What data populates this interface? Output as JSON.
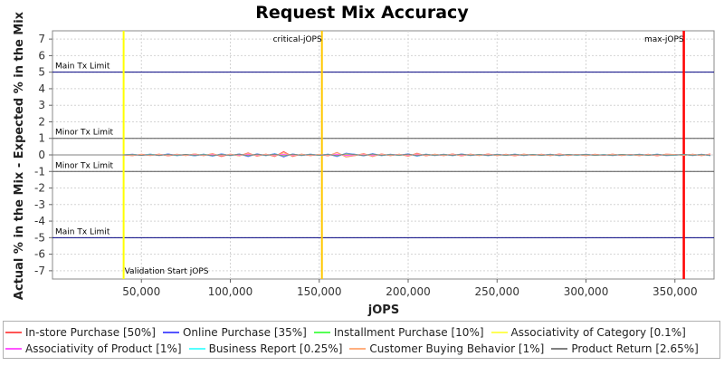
{
  "chart_data": {
    "type": "line",
    "title": "Request Mix Accuracy",
    "xlabel": "jOPS",
    "ylabel": "Actual % in the Mix - Expected % in the Mix",
    "xlim": [
      0,
      372000
    ],
    "ylim": [
      -7.5,
      7.5
    ],
    "x_ticks": [
      50000,
      100000,
      150000,
      200000,
      250000,
      300000,
      350000
    ],
    "x_tick_labels": [
      "50,000",
      "100,000",
      "150,000",
      "200,000",
      "250,000",
      "300,000",
      "350,000"
    ],
    "y_ticks": [
      7,
      6,
      5,
      4,
      3,
      2,
      1,
      0,
      -1,
      -2,
      -3,
      -4,
      -5,
      -6,
      -7
    ],
    "y_tick_labels": [
      "7",
      "6",
      "5",
      "4",
      "3",
      "2",
      "1",
      "0",
      "-1",
      "-2",
      "-3",
      "-4",
      "-5",
      "-6",
      "-7"
    ],
    "grid": true,
    "legend_position": "bottom",
    "reference_lines": [
      {
        "orientation": "horizontal",
        "value": 5,
        "label": "Main Tx Limit",
        "color": "#000080"
      },
      {
        "orientation": "horizontal",
        "value": 1,
        "label": "Minor Tx Limit",
        "color": "#555555"
      },
      {
        "orientation": "horizontal",
        "value": -1,
        "label": "Minor Tx Limit",
        "color": "#555555"
      },
      {
        "orientation": "horizontal",
        "value": -5,
        "label": "Main Tx Limit",
        "color": "#000080"
      },
      {
        "orientation": "vertical",
        "value": 40000,
        "label": "Validation Start jOPS",
        "color": "#ffff00"
      },
      {
        "orientation": "vertical",
        "value": 151500,
        "label": "critical-jOPS",
        "color": "#ffc800"
      },
      {
        "orientation": "vertical",
        "value": 355000,
        "label": "max-jOPS",
        "color": "#ff0000"
      }
    ],
    "x": [
      0,
      5000,
      10000,
      15000,
      20000,
      25000,
      30000,
      35000,
      40000,
      45000,
      50000,
      55000,
      60000,
      65000,
      70000,
      75000,
      80000,
      85000,
      90000,
      95000,
      100000,
      105000,
      110000,
      115000,
      120000,
      125000,
      130000,
      135000,
      140000,
      145000,
      150000,
      155000,
      160000,
      165000,
      170000,
      175000,
      180000,
      185000,
      190000,
      195000,
      200000,
      205000,
      210000,
      215000,
      220000,
      225000,
      230000,
      235000,
      240000,
      245000,
      250000,
      255000,
      260000,
      265000,
      270000,
      275000,
      280000,
      285000,
      290000,
      295000,
      300000,
      305000,
      310000,
      315000,
      320000,
      325000,
      330000,
      335000,
      340000,
      345000,
      350000,
      355000,
      360000,
      365000,
      370000
    ],
    "series": [
      {
        "name": "In-store Purchase [50%]",
        "color": "#ff5555",
        "values": [
          0,
          0,
          0,
          0,
          0,
          0,
          0,
          0,
          0,
          -0.05,
          0.04,
          -0.03,
          0.05,
          -0.06,
          0.03,
          -0.04,
          0.06,
          -0.05,
          0.08,
          -0.1,
          0.05,
          -0.06,
          0.12,
          -0.08,
          0.05,
          -0.1,
          0.2,
          -0.1,
          0.05,
          -0.05,
          0.03,
          -0.06,
          0.15,
          -0.12,
          -0.05,
          0.08,
          -0.1,
          0.06,
          -0.05,
          0.04,
          -0.08,
          0.1,
          -0.06,
          0.04,
          -0.05,
          0.06,
          -0.07,
          0.05,
          -0.04,
          0.06,
          -0.05,
          0.04,
          -0.06,
          0.05,
          -0.03,
          0.04,
          -0.05,
          0.06,
          -0.04,
          0.03,
          -0.05,
          0.04,
          -0.03,
          0.05,
          -0.04,
          0.03,
          -0.05,
          0.04,
          -0.06,
          0.05,
          0.02,
          -0.03,
          0.04,
          -0.05,
          0.06
        ]
      },
      {
        "name": "Online Purchase [35%]",
        "color": "#5555ff",
        "values": [
          0,
          0,
          0,
          0,
          0,
          0,
          0,
          0,
          0,
          0.04,
          -0.03,
          0.05,
          -0.04,
          0.06,
          -0.05,
          0.03,
          -0.06,
          0.05,
          -0.08,
          0.07,
          -0.05,
          0.06,
          -0.1,
          0.07,
          -0.05,
          0.08,
          -0.12,
          0.06,
          -0.04,
          0.05,
          -0.03,
          0.05,
          -0.1,
          0.1,
          0.04,
          -0.06,
          0.08,
          -0.05,
          0.04,
          -0.03,
          0.07,
          -0.08,
          0.05,
          -0.04,
          0.04,
          -0.05,
          0.06,
          -0.04,
          0.03,
          -0.05,
          0.04,
          -0.03,
          0.05,
          -0.04,
          0.03,
          -0.03,
          0.04,
          -0.05,
          0.03,
          -0.02,
          0.04,
          -0.03,
          0.02,
          -0.04,
          0.03,
          -0.02,
          0.04,
          -0.03,
          0.05,
          -0.04,
          -0.02,
          0.03,
          -0.04,
          0.04,
          -0.05
        ]
      },
      {
        "name": "Installment Purchase [10%]",
        "color": "#55ff55",
        "values": [
          0,
          0,
          0,
          0,
          0,
          0,
          0,
          0,
          0,
          0.02,
          -0.02,
          0.03,
          -0.02,
          0.02,
          -0.03,
          0.02,
          -0.02,
          0.03,
          -0.03,
          0.02,
          -0.02,
          0.03,
          -0.04,
          0.03,
          -0.02,
          0.03,
          -0.05,
          0.03,
          -0.02,
          0.02,
          -0.02,
          0.02,
          -0.04,
          0.05,
          0.02,
          -0.03,
          0.04,
          -0.02,
          0.02,
          -0.02,
          0.03,
          -0.03,
          0.02,
          -0.02,
          0.02,
          -0.02,
          0.03,
          -0.02,
          0.02,
          -0.02,
          0.02,
          -0.02,
          0.02,
          -0.02,
          0.02,
          -0.02,
          0.02,
          -0.02,
          0.02,
          -0.01,
          0.02,
          -0.02,
          0.01,
          -0.02,
          0.02,
          -0.01,
          0.02,
          -0.02,
          0.02,
          -0.02,
          -0.01,
          0.02,
          -0.02,
          0.02,
          -0.02
        ]
      },
      {
        "name": "Associativity of Category [0.1%]",
        "color": "#ffff55",
        "values": [
          0,
          0,
          0,
          0,
          0,
          0,
          0,
          0,
          0,
          0.01,
          -0.01,
          0.01,
          -0.01,
          0.01,
          -0.01,
          0.01,
          -0.01,
          0.01,
          -0.01,
          0.01,
          -0.01,
          0.01,
          -0.01,
          0.01,
          -0.01,
          0.01,
          -0.01,
          0.01,
          -0.01,
          0.01,
          -0.01,
          0.01,
          -0.01,
          0.01,
          0.01,
          -0.01,
          0.01,
          -0.01,
          0.01,
          -0.01,
          0.01,
          -0.01,
          0.01,
          -0.01,
          0.01,
          -0.01,
          0.01,
          -0.01,
          0.01,
          -0.01,
          0.01,
          -0.01,
          0.01,
          -0.01,
          0.01,
          -0.01,
          0.01,
          -0.01,
          0.01,
          -0.01,
          0.01,
          -0.01,
          0.01,
          -0.01,
          0.01,
          -0.01,
          0.01,
          -0.01,
          0.01,
          -0.01,
          -0.01,
          0.01,
          -0.01,
          0.01,
          -0.01
        ]
      },
      {
        "name": "Associativity of Product [1%]",
        "color": "#ff55ff",
        "values": [
          0,
          0,
          0,
          0,
          0,
          0,
          0,
          0,
          0,
          -0.02,
          0.01,
          -0.02,
          0.02,
          -0.01,
          0.02,
          -0.02,
          0.01,
          -0.02,
          0.02,
          -0.02,
          0.01,
          -0.02,
          0.03,
          -0.02,
          0.02,
          -0.02,
          0.03,
          -0.02,
          0.01,
          -0.02,
          0.01,
          -0.02,
          0.03,
          -0.03,
          -0.01,
          0.02,
          -0.02,
          0.01,
          -0.01,
          0.02,
          -0.02,
          0.02,
          -0.01,
          0.01,
          -0.02,
          0.02,
          -0.02,
          0.01,
          -0.01,
          0.02,
          -0.01,
          0.01,
          -0.02,
          0.01,
          -0.01,
          0.01,
          -0.01,
          0.02,
          -0.01,
          0.01,
          -0.01,
          0.01,
          -0.01,
          0.01,
          -0.01,
          0.01,
          -0.01,
          0.01,
          -0.02,
          0.01,
          0.01,
          -0.01,
          0.01,
          -0.01,
          0.02
        ]
      },
      {
        "name": "Business Report [0.25%]",
        "color": "#55ffff",
        "values": [
          0,
          0,
          0,
          0,
          0,
          0,
          0,
          0,
          0,
          0.03,
          -0.02,
          0.04,
          -0.03,
          0.04,
          -0.04,
          0.03,
          -0.05,
          0.04,
          -0.06,
          0.05,
          -0.04,
          0.05,
          -0.06,
          0.05,
          -0.04,
          0.06,
          -0.08,
          0.05,
          -0.03,
          0.04,
          -0.03,
          0.04,
          -0.07,
          0.08,
          0.03,
          -0.05,
          0.06,
          -0.04,
          0.03,
          -0.03,
          0.05,
          -0.06,
          0.04,
          -0.03,
          0.03,
          -0.04,
          0.05,
          -0.03,
          0.03,
          -0.04,
          0.03,
          -0.03,
          0.04,
          -0.03,
          0.03,
          -0.02,
          0.03,
          -0.04,
          0.02,
          -0.02,
          0.03,
          -0.02,
          0.02,
          -0.03,
          0.02,
          -0.02,
          0.03,
          -0.02,
          0.04,
          -0.03,
          -0.02,
          0.02,
          -0.03,
          0.03,
          -0.04
        ]
      },
      {
        "name": "Customer Buying Behavior [1%]",
        "color": "#ffaf7f",
        "values": [
          0,
          0,
          0,
          0,
          0,
          0,
          0,
          0,
          0,
          -0.04,
          0.03,
          -0.05,
          0.04,
          -0.05,
          0.05,
          -0.04,
          0.06,
          -0.05,
          0.07,
          -0.06,
          0.05,
          -0.07,
          0.09,
          -0.06,
          0.05,
          -0.07,
          0.12,
          -0.07,
          0.04,
          -0.05,
          0.04,
          -0.05,
          0.12,
          -0.1,
          -0.04,
          0.06,
          -0.08,
          0.05,
          -0.04,
          0.04,
          -0.06,
          0.07,
          -0.05,
          0.04,
          -0.04,
          0.05,
          -0.06,
          0.04,
          -0.04,
          0.05,
          -0.04,
          0.03,
          -0.05,
          0.04,
          -0.03,
          0.03,
          -0.04,
          0.05,
          -0.03,
          0.03,
          -0.04,
          0.03,
          -0.02,
          0.04,
          -0.03,
          0.02,
          -0.04,
          0.03,
          -0.05,
          0.04,
          0.02,
          -0.03,
          0.04,
          -0.04,
          0.05
        ]
      },
      {
        "name": "Product Return [2.65%]",
        "color": "#808080",
        "values": [
          0,
          0,
          0,
          0,
          0,
          0,
          0,
          0,
          0,
          0.02,
          -0.03,
          0.02,
          -0.03,
          0.03,
          -0.02,
          0.03,
          -0.03,
          0.02,
          -0.04,
          0.03,
          -0.03,
          0.04,
          -0.05,
          0.04,
          -0.03,
          0.04,
          -0.06,
          0.04,
          -0.02,
          0.03,
          -0.02,
          0.03,
          -0.05,
          0.06,
          0.02,
          -0.04,
          0.05,
          -0.03,
          0.02,
          -0.02,
          0.04,
          -0.04,
          0.03,
          -0.02,
          0.02,
          -0.03,
          0.04,
          -0.02,
          0.02,
          -0.03,
          0.02,
          -0.02,
          0.03,
          -0.02,
          0.02,
          -0.02,
          0.02,
          -0.03,
          0.02,
          -0.01,
          0.02,
          -0.02,
          0.01,
          -0.02,
          0.02,
          -0.01,
          0.02,
          -0.02,
          0.03,
          -0.02,
          -0.01,
          0.02,
          -0.02,
          0.02,
          -0.03
        ]
      }
    ]
  }
}
